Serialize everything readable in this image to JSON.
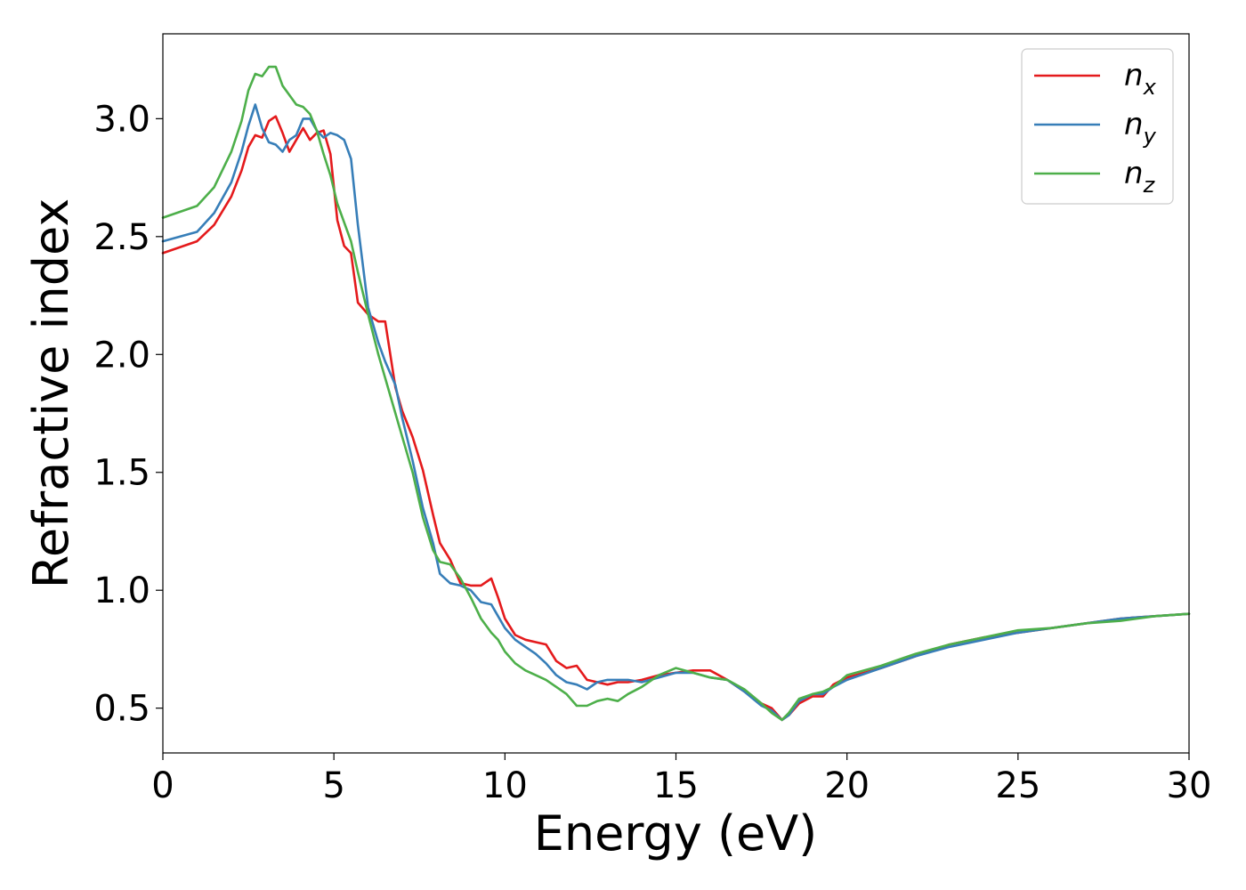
{
  "chart_data": {
    "type": "line",
    "xlabel": "Energy (eV)",
    "ylabel": "Refractive index",
    "xlim": [
      0,
      30
    ],
    "ylim": [
      0.31,
      3.36
    ],
    "xticks": [
      0,
      5,
      10,
      15,
      20,
      25,
      30
    ],
    "yticks": [
      0.5,
      1.0,
      1.5,
      2.0,
      2.5,
      3.0
    ],
    "xtick_labels": [
      "0",
      "5",
      "10",
      "15",
      "20",
      "25",
      "30"
    ],
    "ytick_labels": [
      "0.5",
      "1.0",
      "1.5",
      "2.0",
      "2.5",
      "3.0"
    ],
    "grid": false,
    "legend_position": "top-right",
    "series": [
      {
        "name": "n_x",
        "label_base": "n",
        "label_sub": "x",
        "color": "#e41a1c",
        "x": [
          0,
          1,
          1.5,
          2,
          2.3,
          2.5,
          2.7,
          2.9,
          3.1,
          3.3,
          3.5,
          3.7,
          3.9,
          4.1,
          4.3,
          4.5,
          4.7,
          4.9,
          5.1,
          5.3,
          5.5,
          5.7,
          6.0,
          6.3,
          6.5,
          6.8,
          7.0,
          7.3,
          7.6,
          7.9,
          8.1,
          8.4,
          8.7,
          9.0,
          9.3,
          9.6,
          9.8,
          10.0,
          10.3,
          10.6,
          10.9,
          11.2,
          11.5,
          11.8,
          12.1,
          12.4,
          12.7,
          13.0,
          13.3,
          13.6,
          14.0,
          14.5,
          15.0,
          15.5,
          16.0,
          16.5,
          17.0,
          17.5,
          17.8,
          18.1,
          18.3,
          18.6,
          19.0,
          19.3,
          19.6,
          20.0,
          21.0,
          22.0,
          23.0,
          24.0,
          25.0,
          26.0,
          27.0,
          28.0,
          29.0,
          30.0
        ],
        "y": [
          2.43,
          2.48,
          2.55,
          2.67,
          2.78,
          2.88,
          2.93,
          2.92,
          2.99,
          3.01,
          2.94,
          2.86,
          2.91,
          2.96,
          2.91,
          2.94,
          2.95,
          2.85,
          2.57,
          2.46,
          2.43,
          2.22,
          2.17,
          2.14,
          2.14,
          1.86,
          1.76,
          1.65,
          1.51,
          1.32,
          1.2,
          1.13,
          1.03,
          1.02,
          1.02,
          1.05,
          0.97,
          0.88,
          0.81,
          0.79,
          0.78,
          0.77,
          0.7,
          0.67,
          0.68,
          0.62,
          0.61,
          0.6,
          0.61,
          0.61,
          0.62,
          0.64,
          0.65,
          0.66,
          0.66,
          0.62,
          0.57,
          0.52,
          0.5,
          0.45,
          0.47,
          0.52,
          0.55,
          0.55,
          0.6,
          0.63,
          0.67,
          0.72,
          0.77,
          0.8,
          0.82,
          0.84,
          0.86,
          0.88,
          0.89,
          0.9
        ]
      },
      {
        "name": "n_y",
        "label_base": "n",
        "label_sub": "y",
        "color": "#377eb8",
        "x": [
          0,
          1,
          1.5,
          2,
          2.3,
          2.5,
          2.7,
          2.9,
          3.1,
          3.3,
          3.5,
          3.7,
          3.9,
          4.1,
          4.3,
          4.5,
          4.7,
          4.9,
          5.1,
          5.3,
          5.5,
          5.7,
          6.0,
          6.3,
          6.5,
          6.8,
          7.0,
          7.3,
          7.6,
          7.9,
          8.1,
          8.4,
          8.7,
          9.0,
          9.3,
          9.6,
          9.8,
          10.0,
          10.3,
          10.6,
          10.9,
          11.2,
          11.5,
          11.8,
          12.1,
          12.4,
          12.7,
          13.0,
          13.3,
          13.6,
          14.0,
          14.5,
          15.0,
          15.5,
          16.0,
          16.5,
          17.0,
          17.5,
          17.8,
          18.1,
          18.3,
          18.6,
          19.0,
          19.3,
          19.6,
          20.0,
          21.0,
          22.0,
          23.0,
          24.0,
          25.0,
          26.0,
          27.0,
          28.0,
          29.0,
          30.0
        ],
        "y": [
          2.48,
          2.52,
          2.6,
          2.73,
          2.86,
          2.97,
          3.06,
          2.96,
          2.9,
          2.89,
          2.86,
          2.91,
          2.93,
          3.0,
          3.0,
          2.95,
          2.92,
          2.94,
          2.93,
          2.91,
          2.83,
          2.55,
          2.2,
          2.05,
          1.97,
          1.87,
          1.73,
          1.55,
          1.35,
          1.2,
          1.07,
          1.03,
          1.02,
          1.0,
          0.95,
          0.94,
          0.89,
          0.84,
          0.79,
          0.76,
          0.73,
          0.69,
          0.64,
          0.61,
          0.6,
          0.58,
          0.61,
          0.62,
          0.62,
          0.62,
          0.61,
          0.63,
          0.65,
          0.65,
          0.63,
          0.62,
          0.57,
          0.51,
          0.49,
          0.45,
          0.47,
          0.53,
          0.56,
          0.56,
          0.59,
          0.62,
          0.67,
          0.72,
          0.76,
          0.79,
          0.82,
          0.84,
          0.86,
          0.88,
          0.89,
          0.9
        ]
      },
      {
        "name": "n_z",
        "label_base": "n",
        "label_sub": "z",
        "color": "#4daf4a",
        "x": [
          0,
          1,
          1.5,
          2,
          2.3,
          2.5,
          2.7,
          2.9,
          3.1,
          3.3,
          3.5,
          3.7,
          3.9,
          4.1,
          4.3,
          4.5,
          4.7,
          4.9,
          5.1,
          5.3,
          5.5,
          5.7,
          6.0,
          6.3,
          6.5,
          6.8,
          7.0,
          7.3,
          7.6,
          7.9,
          8.1,
          8.4,
          8.7,
          9.0,
          9.3,
          9.6,
          9.8,
          10.0,
          10.3,
          10.6,
          10.9,
          11.2,
          11.5,
          11.8,
          12.1,
          12.4,
          12.7,
          13.0,
          13.3,
          13.6,
          14.0,
          14.5,
          15.0,
          15.5,
          16.0,
          16.5,
          17.0,
          17.5,
          17.8,
          18.1,
          18.3,
          18.6,
          19.0,
          19.3,
          19.6,
          20.0,
          21.0,
          22.0,
          23.0,
          24.0,
          25.0,
          26.0,
          27.0,
          28.0,
          29.0,
          30.0
        ],
        "y": [
          2.58,
          2.63,
          2.71,
          2.86,
          2.99,
          3.12,
          3.19,
          3.18,
          3.22,
          3.22,
          3.14,
          3.1,
          3.06,
          3.05,
          3.02,
          2.95,
          2.85,
          2.76,
          2.64,
          2.56,
          2.48,
          2.35,
          2.17,
          2.0,
          1.9,
          1.75,
          1.65,
          1.5,
          1.31,
          1.17,
          1.12,
          1.11,
          1.05,
          0.97,
          0.88,
          0.82,
          0.79,
          0.74,
          0.69,
          0.66,
          0.64,
          0.62,
          0.59,
          0.56,
          0.51,
          0.51,
          0.53,
          0.54,
          0.53,
          0.56,
          0.59,
          0.64,
          0.67,
          0.65,
          0.63,
          0.62,
          0.58,
          0.52,
          0.48,
          0.45,
          0.48,
          0.54,
          0.56,
          0.57,
          0.59,
          0.64,
          0.68,
          0.73,
          0.77,
          0.8,
          0.83,
          0.84,
          0.86,
          0.87,
          0.89,
          0.9
        ]
      }
    ]
  }
}
